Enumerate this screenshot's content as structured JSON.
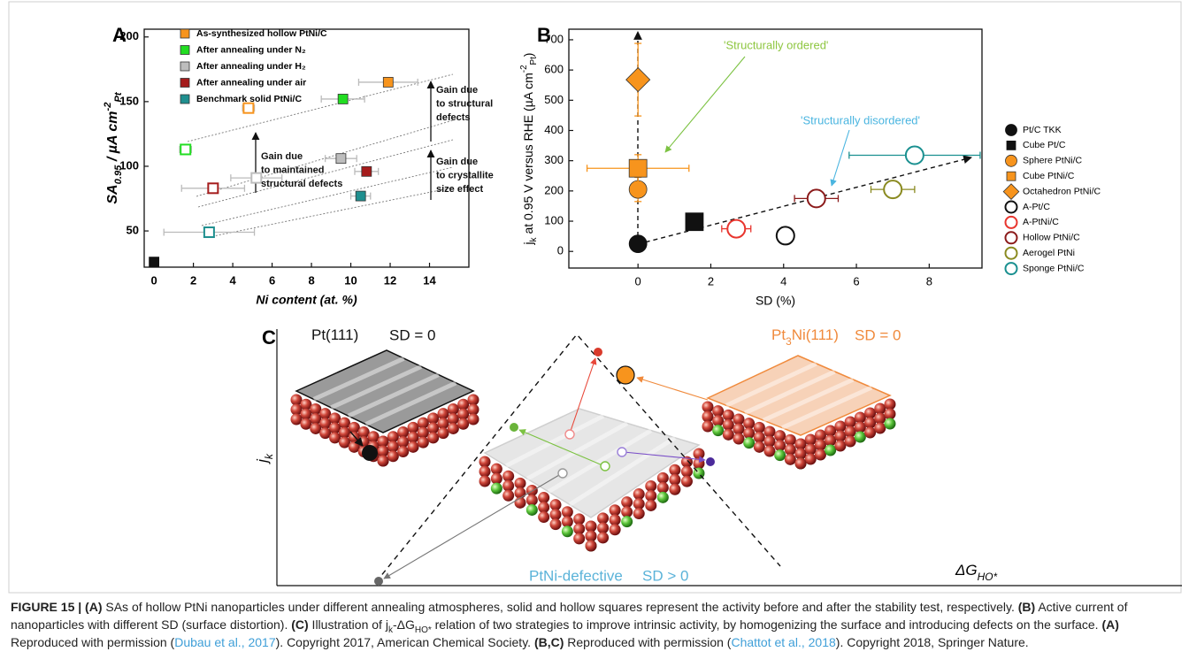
{
  "chart_data": [
    {
      "type": "scatter",
      "panel": "A",
      "xlabel": "Ni content (at. %)",
      "ylabel": [
        {
          "t": "SA"
        },
        {
          "t": "0.95",
          "sub": true
        },
        {
          "t": " / µA cm"
        },
        {
          "t": "-2",
          "sup": true
        },
        {
          "t": "Pt",
          "sub": true
        }
      ],
      "xlim": [
        -0.5,
        16
      ],
      "ylim": [
        22,
        206
      ],
      "xticks": [
        0,
        2,
        4,
        6,
        8,
        10,
        12,
        14
      ],
      "yticks": [
        50,
        100,
        150,
        200
      ],
      "legend": "upper left",
      "marker": "square",
      "errorbar_color": "#bbbbbb",
      "series": [
        {
          "name": "As-synthesized hollow PtNi/C",
          "color": "#f7941d",
          "x": [
            11.9,
            4.8
          ],
          "values": [
            165,
            145
          ],
          "xerr": [
            1.5,
            0.3
          ],
          "filled": [
            true,
            false
          ]
        },
        {
          "name": "After annealing under N₂",
          "color": "#22dd22",
          "x": [
            9.6,
            1.6
          ],
          "values": [
            152,
            113
          ],
          "xerr": [
            1.1,
            0.3
          ],
          "filled": [
            true,
            false
          ]
        },
        {
          "name": "After annealing under H₂",
          "color": "#bdbdbd",
          "x": [
            9.5,
            5.2
          ],
          "values": [
            106,
            91
          ],
          "xerr": [
            0.8,
            1.3
          ],
          "filled": [
            true,
            false
          ]
        },
        {
          "name": "After annealing under air",
          "color": "#a51c1c",
          "x": [
            10.8,
            3.0
          ],
          "values": [
            96,
            83
          ],
          "xerr": [
            0.6,
            1.6
          ],
          "filled": [
            true,
            false
          ]
        },
        {
          "name": "Benchmark solid PtNi/C",
          "color": "#1f8f8f",
          "x": [
            10.5,
            2.8
          ],
          "values": [
            77,
            49
          ],
          "xerr": [
            0.5,
            2.3
          ],
          "filled": [
            true,
            false
          ]
        },
        {
          "color": "#111111",
          "x": [
            0
          ],
          "values": [
            26
          ],
          "filled": [
            true
          ]
        }
      ],
      "annotations": [
        {
          "lines": [
            "Gain due",
            "to maintained",
            "structural defects"
          ]
        },
        {
          "lines": [
            "Gain due",
            "to structural",
            "defects"
          ]
        },
        {
          "lines": [
            "Gain due",
            "to crystallite",
            "size effect"
          ]
        }
      ]
    },
    {
      "type": "scatter",
      "panel": "B",
      "xlabel": "SD (%)",
      "ylabel": [
        {
          "t": "j"
        },
        {
          "t": "k",
          "sub": true
        },
        {
          "t": " at 0.95 V versus RHE (µA cm"
        },
        {
          "t": "-2",
          "sup": true
        },
        {
          "t": "Pt",
          "sub": true
        },
        {
          "t": ")"
        }
      ],
      "xlim": [
        -1.9,
        9.45
      ],
      "ylim": [
        -55,
        735
      ],
      "xticks": [
        0,
        2,
        4,
        6,
        8
      ],
      "yticks": [
        0,
        100,
        200,
        300,
        400,
        500,
        600,
        700
      ],
      "legend": "right",
      "series": [
        {
          "name": "Pt/C TKK",
          "color": "#111111",
          "marker": "circle",
          "filled": true,
          "x": [
            0
          ],
          "values": [
            25
          ]
        },
        {
          "name": "Cube Pt/C",
          "color": "#111111",
          "marker": "square",
          "filled": true,
          "x": [
            1.55
          ],
          "values": [
            98
          ],
          "xerr": [
            0.1
          ],
          "yerr": [
            15
          ]
        },
        {
          "name": "Sphere PtNi/C",
          "color": "#f7941d",
          "marker": "circle",
          "filled": true,
          "x": [
            0
          ],
          "values": [
            205
          ],
          "yerr": [
            40
          ]
        },
        {
          "name": "Cube PtNi/C",
          "color": "#f7941d",
          "marker": "square",
          "filled": true,
          "x": [
            0
          ],
          "values": [
            275
          ],
          "xerr": [
            1.4
          ],
          "yerr": [
            45
          ]
        },
        {
          "name": "Octahedron PtNi/C",
          "color": "#f7941d",
          "marker": "diamond",
          "filled": true,
          "x": [
            0
          ],
          "values": [
            568
          ],
          "yerr": [
            120
          ]
        },
        {
          "name": "A-Pt/C",
          "color": "#111111",
          "marker": "circle",
          "filled": false,
          "x": [
            4.05
          ],
          "values": [
            52
          ],
          "xerr": [
            0.2
          ],
          "yerr": [
            22
          ]
        },
        {
          "name": "A-PtNi/C",
          "color": "#e8352e",
          "marker": "circle",
          "filled": false,
          "x": [
            2.7
          ],
          "values": [
            75
          ],
          "xerr": [
            0.4
          ],
          "yerr": [
            25
          ]
        },
        {
          "name": "Hollow PtNi/C",
          "color": "#8b1a1a",
          "marker": "circle",
          "filled": false,
          "x": [
            4.9
          ],
          "values": [
            175
          ],
          "xerr": [
            0.6
          ],
          "yerr": [
            15
          ]
        },
        {
          "name": "Aerogel PtNi",
          "color": "#8a8a20",
          "marker": "circle",
          "filled": false,
          "x": [
            7.0
          ],
          "values": [
            205
          ],
          "xerr": [
            0.6
          ],
          "yerr": [
            10
          ]
        },
        {
          "name": "Sponge PtNi/C",
          "color": "#1a9090",
          "marker": "circle",
          "filled": false,
          "x": [
            7.6
          ],
          "values": [
            318
          ],
          "xerr": [
            1.8
          ],
          "yerr": [
            20
          ]
        }
      ],
      "annotations": [
        {
          "lines": [
            "'Structurally ordered'"
          ],
          "color": "#8dc63f"
        },
        {
          "lines": [
            "'Structurally disordered'"
          ],
          "color": "#4ab5e0"
        }
      ]
    }
  ],
  "diagram": {
    "panel": "C",
    "ylabel": [
      {
        "t": "j"
      },
      {
        "t": "k",
        "sub": true
      }
    ],
    "xlabel": [
      {
        "t": "ΔG"
      },
      {
        "t": "HO*",
        "sub": true
      }
    ],
    "left": {
      "label": [
        {
          "t": "Pt(111)"
        }
      ],
      "sd": "SD = 0"
    },
    "right": {
      "label": [
        {
          "t": "Pt"
        },
        {
          "t": "3",
          "sub": true
        },
        {
          "t": "Ni(111)"
        }
      ],
      "sd": "SD = 0"
    },
    "middle": {
      "label": "PtNi-defective",
      "sd": "SD > 0"
    }
  },
  "caption": [
    {
      "t": "FIGURE 15 | (A)",
      "b": true
    },
    {
      "t": " SAs of hollow PtNi nanoparticles under different annealing atmospheres, solid and hollow squares represent the activity before and after the stability test, respectively. "
    },
    {
      "t": "(B)",
      "b": true
    },
    {
      "t": " Active current of nanoparticles with different SD (surface distortion). "
    },
    {
      "t": "(C)",
      "b": true
    },
    {
      "t": " Illustration of j"
    },
    {
      "t": "k",
      "sub": true
    },
    {
      "t": "-ΔG"
    },
    {
      "t": "HO*",
      "sub": true
    },
    {
      "t": " relation of two strategies to improve intrinsic activity, by homogenizing the surface and introducing defects on the surface. "
    },
    {
      "t": "(A)",
      "b": true
    },
    {
      "t": " Reproduced with permission ("
    },
    {
      "t": "Dubau et al., 2017",
      "link": true
    },
    {
      "t": "). Copyright 2017, American Chemical Society. "
    },
    {
      "t": "(B,C)",
      "b": true
    },
    {
      "t": " Reproduced with permission ("
    },
    {
      "t": "Chattot et al., 2018",
      "link": true
    },
    {
      "t": "). Copyright 2018, Springer Nature."
    }
  ]
}
